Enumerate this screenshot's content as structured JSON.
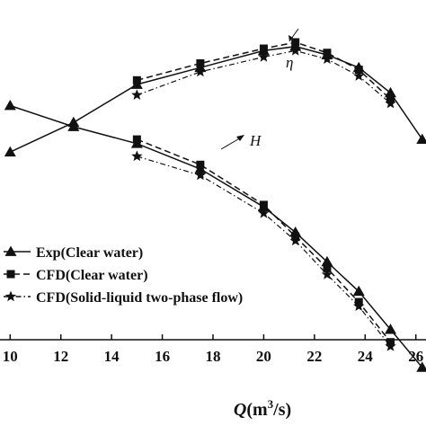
{
  "chart_data": {
    "type": "line",
    "xlabel_var": "Q",
    "xlabel_unit": "(m",
    "xlabel_sup": "3",
    "xlabel_tail": "/s)",
    "xlim": [
      9.6,
      26.4
    ],
    "x_ticks": [
      10,
      12,
      14,
      16,
      18,
      20,
      22,
      24,
      26
    ],
    "grid": false,
    "legend_position": "bottom-left",
    "annotations": [
      {
        "text": "η",
        "target_series": "efficiency"
      },
      {
        "text": "H",
        "target_series": "head"
      }
    ],
    "legend": [
      {
        "label": "Exp(Clear water)",
        "marker": "triangle",
        "line": "solid"
      },
      {
        "label": "CFD(Clear water)",
        "marker": "square",
        "line": "dashed"
      },
      {
        "label": "CFD(Solid-liquid two-phase flow)",
        "marker": "star",
        "line": "dash-dot"
      }
    ],
    "series": [
      {
        "group": "efficiency",
        "style": "exp",
        "x": [
          10.0,
          12.5,
          15.0,
          17.5,
          20.0,
          21.25,
          22.5,
          23.75,
          25.0,
          26.25
        ],
        "y": [
          0.64,
          0.71,
          0.8,
          0.84,
          0.88,
          0.89,
          0.87,
          0.84,
          0.78,
          0.67
        ]
      },
      {
        "group": "efficiency",
        "style": "cfd",
        "x": [
          15.0,
          17.5,
          20.0,
          21.25,
          22.5,
          23.75,
          25.0
        ],
        "y": [
          0.81,
          0.85,
          0.885,
          0.9,
          0.875,
          0.835,
          0.765
        ]
      },
      {
        "group": "efficiency",
        "style": "twophase",
        "x": [
          15.0,
          17.5,
          20.0,
          21.25,
          22.5,
          23.75,
          25.0
        ],
        "y": [
          0.775,
          0.83,
          0.865,
          0.88,
          0.86,
          0.82,
          0.755
        ]
      },
      {
        "group": "head",
        "style": "exp",
        "x": [
          10.0,
          12.5,
          15.0,
          17.5,
          20.0,
          21.25,
          22.5,
          23.75,
          25.0,
          26.25
        ],
        "y": [
          0.75,
          0.7,
          0.66,
          0.6,
          0.51,
          0.45,
          0.38,
          0.31,
          0.22,
          0.13
        ]
      },
      {
        "group": "head",
        "style": "cfd",
        "x": [
          15.0,
          17.5,
          20.0,
          21.25,
          22.5,
          23.75,
          25.0
        ],
        "y": [
          0.67,
          0.61,
          0.515,
          0.44,
          0.365,
          0.285,
          0.19
        ]
      },
      {
        "group": "head",
        "style": "twophase",
        "x": [
          15.0,
          17.5,
          20.0,
          21.25,
          22.5,
          23.75,
          25.0
        ],
        "y": [
          0.63,
          0.585,
          0.495,
          0.43,
          0.35,
          0.275,
          0.18
        ]
      }
    ]
  }
}
